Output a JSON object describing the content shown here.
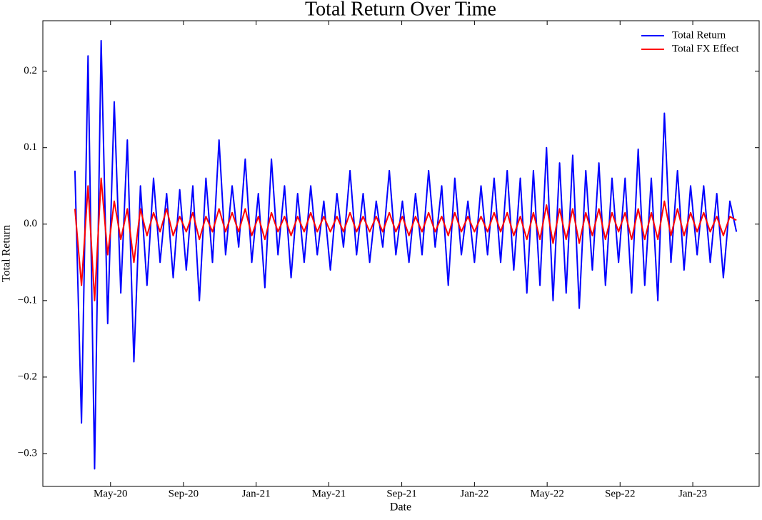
{
  "chart_data": {
    "type": "line",
    "title": "Total Return Over Time",
    "xlabel": "Date",
    "ylabel": "Total Return",
    "x": [
      2020.17,
      2020.2,
      2020.23,
      2020.26,
      2020.29,
      2020.32,
      2020.35,
      2020.38,
      2020.41,
      2020.44,
      2020.47,
      2020.5,
      2020.53,
      2020.56,
      2020.59,
      2020.62,
      2020.65,
      2020.68,
      2020.71,
      2020.74,
      2020.77,
      2020.8,
      2020.83,
      2020.86,
      2020.89,
      2020.92,
      2020.95,
      2020.98,
      2021.01,
      2021.04,
      2021.07,
      2021.1,
      2021.13,
      2021.16,
      2021.19,
      2021.22,
      2021.25,
      2021.28,
      2021.31,
      2021.34,
      2021.37,
      2021.4,
      2021.43,
      2021.46,
      2021.49,
      2021.52,
      2021.55,
      2021.58,
      2021.61,
      2021.64,
      2021.67,
      2021.7,
      2021.73,
      2021.76,
      2021.79,
      2021.82,
      2021.85,
      2021.88,
      2021.91,
      2021.94,
      2021.97,
      2022.0,
      2022.03,
      2022.06,
      2022.09,
      2022.12,
      2022.15,
      2022.18,
      2022.21,
      2022.24,
      2022.27,
      2022.3,
      2022.33,
      2022.36,
      2022.39,
      2022.42,
      2022.45,
      2022.48,
      2022.51,
      2022.54,
      2022.57,
      2022.6,
      2022.63,
      2022.66,
      2022.69,
      2022.72,
      2022.75,
      2022.78,
      2022.81,
      2022.84,
      2022.87,
      2022.9,
      2022.93,
      2022.96,
      2022.99,
      2023.02,
      2023.05,
      2023.08,
      2023.11,
      2023.14,
      2023.17,
      2023.2
    ],
    "series": [
      {
        "name": "Total Return",
        "color": "#0000ff",
        "values": [
          0.07,
          -0.26,
          0.22,
          -0.32,
          0.24,
          -0.13,
          0.16,
          -0.09,
          0.11,
          -0.18,
          0.05,
          -0.08,
          0.06,
          -0.05,
          0.04,
          -0.07,
          0.045,
          -0.06,
          0.05,
          -0.1,
          0.06,
          -0.05,
          0.11,
          -0.04,
          0.05,
          -0.03,
          0.085,
          -0.05,
          0.04,
          -0.083,
          0.085,
          -0.04,
          0.05,
          -0.07,
          0.04,
          -0.05,
          0.05,
          -0.04,
          0.03,
          -0.06,
          0.04,
          -0.03,
          0.07,
          -0.04,
          0.04,
          -0.05,
          0.03,
          -0.03,
          0.07,
          -0.04,
          0.03,
          -0.05,
          0.04,
          -0.04,
          0.07,
          -0.03,
          0.05,
          -0.08,
          0.06,
          -0.04,
          0.03,
          -0.05,
          0.05,
          -0.04,
          0.06,
          -0.05,
          0.07,
          -0.06,
          0.06,
          -0.09,
          0.07,
          -0.08,
          0.1,
          -0.1,
          0.08,
          -0.09,
          0.09,
          -0.11,
          0.07,
          -0.06,
          0.08,
          -0.08,
          0.06,
          -0.05,
          0.06,
          -0.09,
          0.098,
          -0.08,
          0.06,
          -0.1,
          0.145,
          -0.05,
          0.07,
          -0.06,
          0.05,
          -0.04,
          0.05,
          -0.05,
          0.04,
          -0.07,
          0.03,
          -0.01
        ]
      },
      {
        "name": "Total FX Effect",
        "color": "#ff0000",
        "values": [
          0.02,
          -0.08,
          0.05,
          -0.1,
          0.06,
          -0.04,
          0.03,
          -0.02,
          0.02,
          -0.05,
          0.02,
          -0.015,
          0.015,
          -0.01,
          0.02,
          -0.015,
          0.01,
          -0.01,
          0.015,
          -0.02,
          0.01,
          -0.01,
          0.02,
          -0.01,
          0.015,
          -0.01,
          0.02,
          -0.015,
          0.01,
          -0.02,
          0.015,
          -0.01,
          0.01,
          -0.015,
          0.01,
          -0.01,
          0.015,
          -0.01,
          0.01,
          -0.01,
          0.01,
          -0.01,
          0.015,
          -0.01,
          0.01,
          -0.01,
          0.01,
          -0.01,
          0.015,
          -0.01,
          0.01,
          -0.015,
          0.01,
          -0.01,
          0.015,
          -0.01,
          0.01,
          -0.015,
          0.015,
          -0.01,
          0.01,
          -0.01,
          0.01,
          -0.01,
          0.015,
          -0.01,
          0.015,
          -0.015,
          0.01,
          -0.02,
          0.015,
          -0.02,
          0.025,
          -0.025,
          0.02,
          -0.02,
          0.02,
          -0.025,
          0.015,
          -0.015,
          0.02,
          -0.02,
          0.015,
          -0.01,
          0.015,
          -0.02,
          0.02,
          -0.02,
          0.015,
          -0.02,
          0.03,
          -0.015,
          0.02,
          -0.015,
          0.015,
          -0.01,
          0.015,
          -0.01,
          0.01,
          -0.015,
          0.01,
          0.005
        ]
      }
    ],
    "xlim": [
      2020.023,
      2023.304
    ],
    "xticks": [
      {
        "value": 2020.333,
        "label": "May-20"
      },
      {
        "value": 2020.667,
        "label": "Sep-20"
      },
      {
        "value": 2021.0,
        "label": "Jan-21"
      },
      {
        "value": 2021.333,
        "label": "May-21"
      },
      {
        "value": 2021.667,
        "label": "Sep-21"
      },
      {
        "value": 2022.0,
        "label": "Jan-22"
      },
      {
        "value": 2022.333,
        "label": "May-22"
      },
      {
        "value": 2022.667,
        "label": "Sep-22"
      },
      {
        "value": 2023.0,
        "label": "Jan-23"
      }
    ],
    "ylim": [
      -0.343,
      0.266
    ],
    "yticks": [
      {
        "value": -0.3,
        "label": "−0.3"
      },
      {
        "value": -0.2,
        "label": "−0.2"
      },
      {
        "value": -0.1,
        "label": "−0.1"
      },
      {
        "value": 0,
        "label": "0.0"
      },
      0.1,
      0.2
    ],
    "legend": "upper right"
  }
}
